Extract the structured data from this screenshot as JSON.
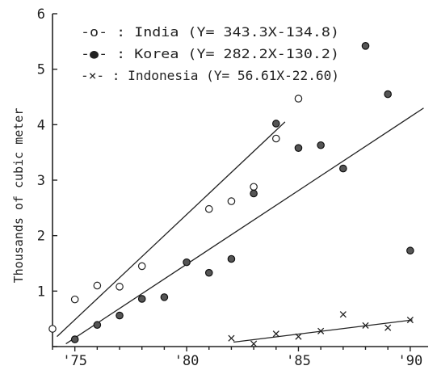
{
  "chart_data": {
    "type": "scatter",
    "title": "",
    "xlabel": "",
    "ylabel": "Thousands of cubic meter",
    "xlim": [
      1974,
      1990.8
    ],
    "ylim": [
      0,
      6
    ],
    "xticks": [
      1975,
      1980,
      1985,
      1990
    ],
    "xtick_labels": [
      "'75",
      "'80",
      "'85",
      "'90"
    ],
    "yticks": [
      0,
      1,
      2,
      3,
      4,
      5,
      6
    ],
    "ytick_labels": [
      "",
      "1",
      "2",
      "3",
      "4",
      "5",
      "6"
    ],
    "grid": false,
    "legend_position": "top-left",
    "series": [
      {
        "name": "India",
        "legend_label": "-o- : India (Y= 343.3X-134.8)",
        "marker": "open-circle",
        "x": [
          1974,
          1975,
          1976,
          1977,
          1978,
          1981,
          1982,
          1983,
          1984,
          1985
        ],
        "y": [
          0.32,
          0.85,
          1.1,
          1.08,
          1.45,
          2.48,
          2.62,
          2.88,
          3.75,
          4.47
        ],
        "fit": {
          "x": [
            1974.2,
            1984.4
          ],
          "y": [
            0.18,
            4.05
          ]
        }
      },
      {
        "name": "Korea",
        "legend_label": "-●- : Korea (Y= 282.2X-130.2)",
        "marker": "filled-circle",
        "x": [
          1975,
          1976,
          1977,
          1978,
          1979,
          1980,
          1981,
          1982,
          1983,
          1984,
          1985,
          1986,
          1987,
          1988,
          1989,
          1990
        ],
        "y": [
          0.13,
          0.39,
          0.56,
          0.86,
          0.89,
          1.52,
          1.33,
          1.58,
          2.76,
          4.02,
          3.58,
          3.63,
          3.21,
          5.42,
          4.55,
          1.73
        ],
        "fit": {
          "x": [
            1974.6,
            1990.6
          ],
          "y": [
            0.05,
            4.3
          ]
        }
      },
      {
        "name": "Indonesia",
        "legend_label": "-×- : Indonesia (Y= 56.61X-22.60)",
        "marker": "x",
        "x": [
          1982,
          1983,
          1984,
          1985,
          1986,
          1987,
          1988,
          1989,
          1990
        ],
        "y": [
          0.15,
          0.05,
          0.23,
          0.18,
          0.28,
          0.58,
          0.38,
          0.34,
          0.48
        ],
        "fit": {
          "x": [
            1982.1,
            1990.1
          ],
          "y": [
            0.08,
            0.48
          ]
        }
      }
    ]
  }
}
